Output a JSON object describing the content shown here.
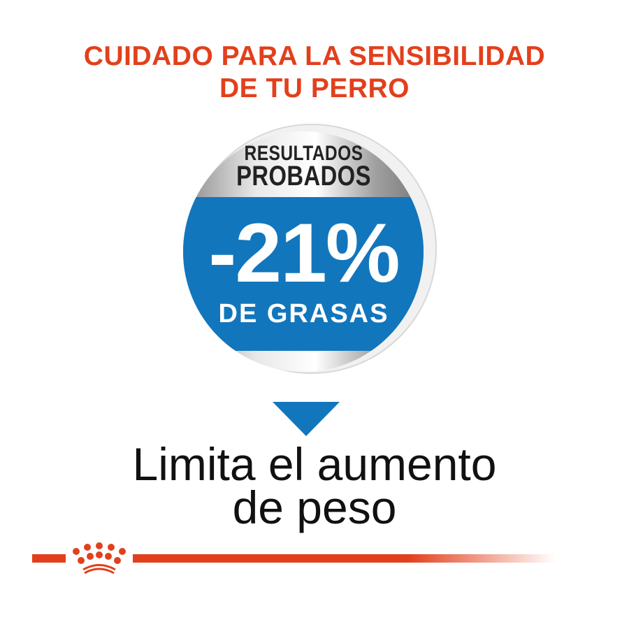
{
  "headline": {
    "line1": "CUIDADO PARA LA SENSIBILIDAD",
    "line2": "DE TU PERRO"
  },
  "badge": {
    "top_line1": "RESULTADOS",
    "top_line2": "PROBADOS",
    "value": "-21%",
    "caption": "DE GRASAS"
  },
  "benefit": {
    "line1": "Limita el aumento",
    "line2": "de peso"
  },
  "colors": {
    "brand_red": "#e2401c",
    "badge_blue": "#1276bc",
    "silver": "#b8b8b8"
  },
  "logo": {
    "name": "crown-icon"
  }
}
